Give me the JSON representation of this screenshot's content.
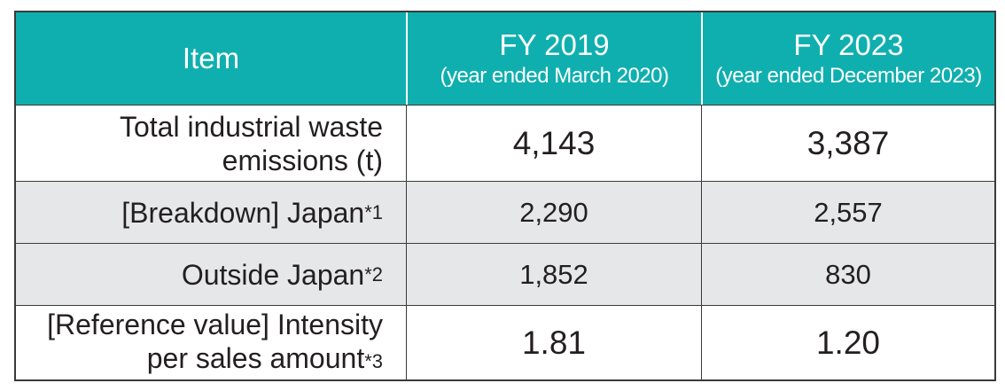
{
  "header": {
    "item": "Item",
    "col1_title": "FY 2019",
    "col1_sub": "(year ended March 2020)",
    "col2_title": "FY 2023",
    "col2_sub": "(year ended December 2023)"
  },
  "rows": [
    {
      "label_line1": "Total industrial waste",
      "label_line2": "emissions (t)",
      "fy2019": "4,143",
      "fy2023": "3,387"
    },
    {
      "label": "[Breakdown] Japan",
      "note": "*1",
      "fy2019": "2,290",
      "fy2023": "2,557"
    },
    {
      "label": "Outside Japan",
      "note": "*2",
      "fy2019": "1,852",
      "fy2023": "830"
    },
    {
      "label_line1": "[Reference value] Intensity",
      "label_line2": "per sales amount",
      "note": "*3",
      "fy2019": "1.81",
      "fy2023": "1.20"
    }
  ],
  "colors": {
    "header_bg": "#10afaf",
    "alt_row_bg": "#e6e7e9"
  }
}
